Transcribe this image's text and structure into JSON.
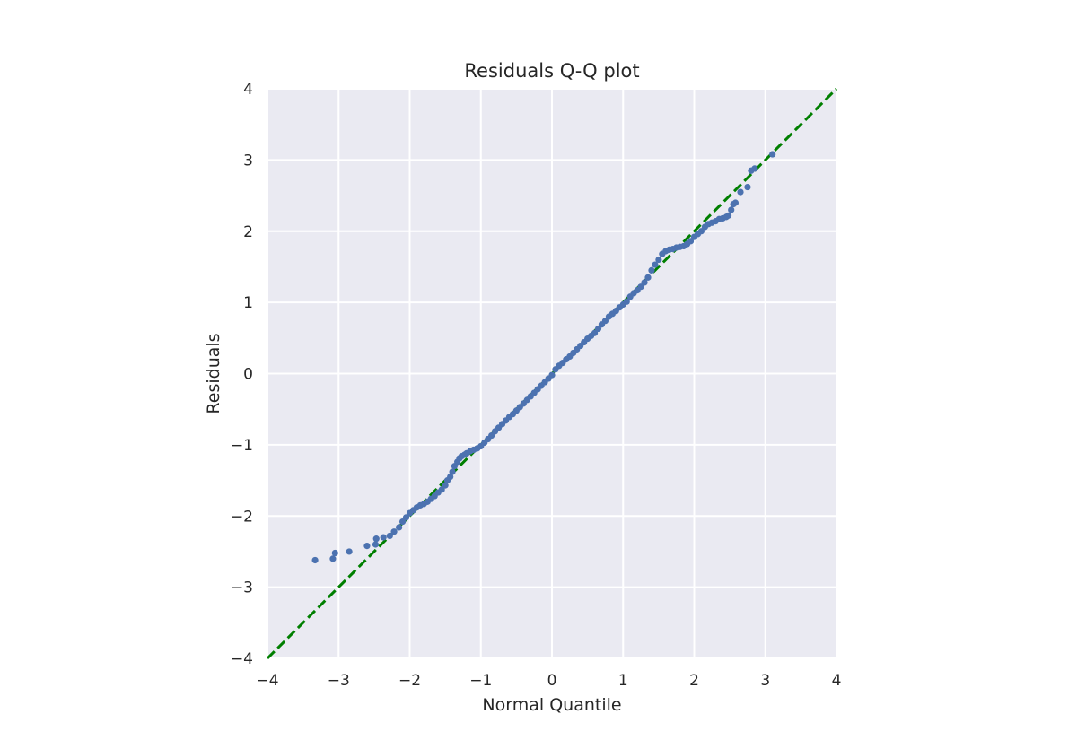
{
  "chart_data": {
    "type": "scatter",
    "title": "Residuals Q-Q plot",
    "xlabel": "Normal Quantile",
    "ylabel": "Residuals",
    "xlim": [
      -4,
      4
    ],
    "ylim": [
      -4,
      4
    ],
    "xticks": [
      -4,
      -3,
      -2,
      -1,
      0,
      1,
      2,
      3,
      4
    ],
    "yticks": [
      -4,
      -3,
      -2,
      -1,
      0,
      1,
      2,
      3,
      4
    ],
    "xtick_labels": [
      "−4",
      "−3",
      "−2",
      "−1",
      "0",
      "1",
      "2",
      "3",
      "4"
    ],
    "ytick_labels": [
      "−4",
      "−3",
      "−2",
      "−1",
      "0",
      "1",
      "2",
      "3",
      "4"
    ],
    "grid": true,
    "background_color": "#eaeaf2",
    "point_color": "#4c72b0",
    "reference_line": {
      "slope": 1,
      "intercept": 0,
      "style": "dashed",
      "color": "#007f00"
    },
    "series": [
      {
        "x": [
          -3.33,
          -3.08,
          -3.05,
          -2.85,
          -2.6,
          -2.48,
          -2.47,
          -2.37,
          -2.28,
          -2.22,
          -2.15,
          -2.1,
          -2.05,
          -2.0,
          -1.95,
          -1.9,
          -1.85,
          -1.8,
          -1.75,
          -1.7,
          -1.65,
          -1.6,
          -1.55,
          -1.5,
          -1.47,
          -1.43,
          -1.4,
          -1.37,
          -1.33,
          -1.3,
          -1.27,
          -1.23,
          -1.2,
          -1.15,
          -1.1,
          -1.05,
          -1.0,
          -0.95,
          -0.9,
          -0.85,
          -0.8,
          -0.75,
          -0.7,
          -0.65,
          -0.6,
          -0.55,
          -0.5,
          -0.45,
          -0.4,
          -0.35,
          -0.3,
          -0.25,
          -0.2,
          -0.15,
          -0.1,
          -0.05,
          0.0,
          0.05,
          0.1,
          0.15,
          0.2,
          0.25,
          0.3,
          0.35,
          0.4,
          0.45,
          0.5,
          0.55,
          0.6,
          0.65,
          0.7,
          0.75,
          0.8,
          0.85,
          0.9,
          0.95,
          1.0,
          1.05,
          1.1,
          1.15,
          1.2,
          1.25,
          1.3,
          1.35,
          1.4,
          1.45,
          1.5,
          1.55,
          1.6,
          1.65,
          1.7,
          1.75,
          1.8,
          1.85,
          1.9,
          1.95,
          2.0,
          2.05,
          2.1,
          2.15,
          2.2,
          2.25,
          2.3,
          2.35,
          2.4,
          2.45,
          2.48,
          2.52,
          2.55,
          2.58,
          2.65,
          2.75,
          2.8,
          2.85,
          3.1
        ],
        "y": [
          -2.62,
          -2.6,
          -2.52,
          -2.5,
          -2.42,
          -2.4,
          -2.32,
          -2.3,
          -2.28,
          -2.22,
          -2.16,
          -2.08,
          -2.02,
          -1.96,
          -1.92,
          -1.88,
          -1.85,
          -1.83,
          -1.8,
          -1.76,
          -1.72,
          -1.67,
          -1.63,
          -1.57,
          -1.5,
          -1.45,
          -1.38,
          -1.3,
          -1.24,
          -1.19,
          -1.16,
          -1.14,
          -1.12,
          -1.09,
          -1.07,
          -1.05,
          -1.02,
          -0.97,
          -0.92,
          -0.87,
          -0.81,
          -0.76,
          -0.71,
          -0.66,
          -0.61,
          -0.57,
          -0.52,
          -0.47,
          -0.42,
          -0.37,
          -0.32,
          -0.27,
          -0.22,
          -0.17,
          -0.12,
          -0.07,
          -0.02,
          0.06,
          0.11,
          0.15,
          0.2,
          0.24,
          0.29,
          0.34,
          0.39,
          0.44,
          0.49,
          0.53,
          0.57,
          0.63,
          0.69,
          0.74,
          0.8,
          0.84,
          0.88,
          0.93,
          0.97,
          1.01,
          1.08,
          1.13,
          1.17,
          1.22,
          1.28,
          1.35,
          1.45,
          1.53,
          1.6,
          1.68,
          1.72,
          1.74,
          1.75,
          1.77,
          1.78,
          1.79,
          1.82,
          1.86,
          1.92,
          1.96,
          2.0,
          2.06,
          2.1,
          2.12,
          2.14,
          2.17,
          2.18,
          2.2,
          2.22,
          2.3,
          2.38,
          2.4,
          2.55,
          2.62,
          2.85,
          2.88,
          3.08
        ]
      }
    ]
  }
}
